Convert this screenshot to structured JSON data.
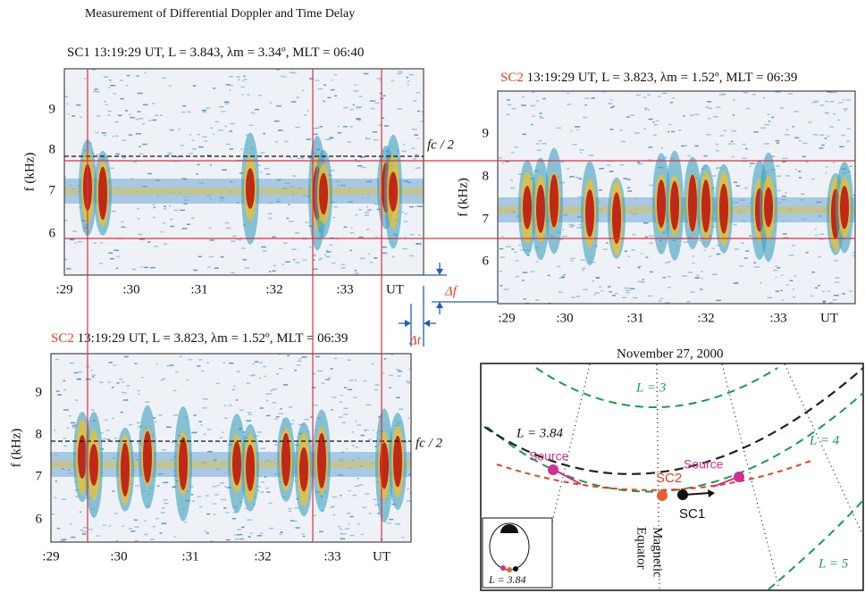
{
  "title": "Measurement of Differential Doppler and Time Delay",
  "panels": [
    {
      "craft": "SC1",
      "info": "13:19:29 UT, L = 3.843, λm = 3.34º, MLT = 06:40",
      "ylabel": "f (kHz)",
      "yticks": [
        "9",
        "8",
        "7",
        "6"
      ],
      "xticks": [
        ":29",
        ":30",
        ":31",
        ":32",
        ":33",
        "UT"
      ],
      "annotation": "fc / 2"
    },
    {
      "craft": "SC2",
      "info": "13:19:29 UT, L = 3.823, λm = 1.52º, MLT = 06:39",
      "ylabel": "f (kHz)",
      "yticks": [
        "9",
        "8",
        "7",
        "6"
      ],
      "xticks": [
        ":29",
        ":30",
        ":31",
        ":32",
        ":33",
        "UT"
      ]
    },
    {
      "craft": "SC2",
      "info": "13:19:29 UT, L = 3.823, λm = 1.52º, MLT = 06:39",
      "ylabel": "f (kHz)",
      "yticks": [
        "9",
        "8",
        "7",
        "6"
      ],
      "xticks": [
        ":29",
        ":30",
        ":31",
        ":32",
        ":33",
        "UT"
      ],
      "annotation": "fc / 2"
    }
  ],
  "delta_f": "Δf",
  "delta_t": "Δt",
  "map": {
    "date": "November 27, 2000",
    "shells": [
      "L = 3",
      "L = 4",
      "L = 5",
      "L = 3.84"
    ],
    "sources": [
      "Source",
      "Source"
    ],
    "spacecraft": [
      "SC2",
      "SC1"
    ],
    "equator": [
      "Magnetic",
      "Equator"
    ],
    "inset": "L = 3.84"
  }
}
